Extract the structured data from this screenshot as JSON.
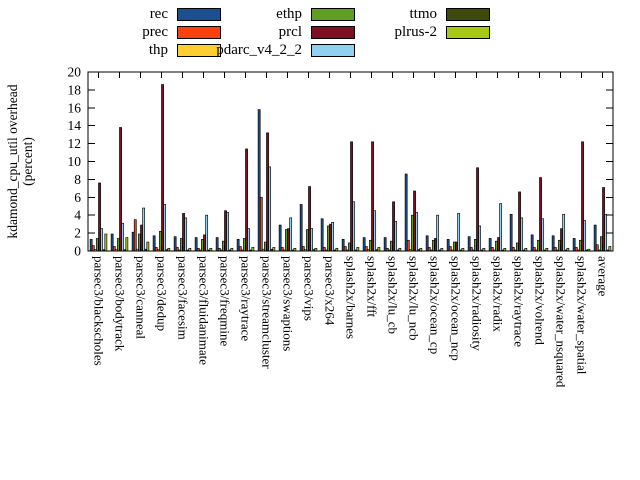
{
  "page": {
    "background": "#ffffff"
  },
  "legend": {
    "columns": [
      [
        "rec",
        "prec",
        "thp"
      ],
      [
        "ethp",
        "prcl",
        "pdarc_v4_2_2"
      ],
      [
        "ttmo",
        "plrus-2"
      ]
    ]
  },
  "chart_data": {
    "type": "bar",
    "title": "",
    "xlabel": "",
    "ylabel_lines": [
      "kdamond_cpu_util overhead",
      "(percent)"
    ],
    "ylim": [
      0,
      20
    ],
    "ytick_step": 2,
    "grid": false,
    "legend_position": "top",
    "categories": [
      "parsec3/blackscholes",
      "parsec3/bodytrack",
      "parsec3/canneal",
      "parsec3/dedup",
      "parsec3/facesim",
      "parsec3/fluidanimate",
      "parsec3/freqmine",
      "parsec3/raytrace",
      "parsec3/streamcluster",
      "parsec3/swaptions",
      "parsec3/vips",
      "parsec3/x264",
      "splash2x/barnes",
      "splash2x/fft",
      "splash2x/lu_cb",
      "splash2x/lu_ncb",
      "splash2x/ocean_cp",
      "splash2x/ocean_ncp",
      "splash2x/radiosity",
      "splash2x/radix",
      "splash2x/raytrace",
      "splash2x/volrend",
      "splash2x/water_nsquared",
      "splash2x/water_spatial",
      "average"
    ],
    "series": [
      {
        "name": "rec",
        "color": "#1b4f8f",
        "values": [
          1.3,
          1.9,
          2.1,
          1.7,
          1.6,
          1.5,
          1.5,
          1.3,
          15.8,
          2.9,
          5.2,
          3.6,
          1.3,
          1.5,
          1.5,
          8.6,
          1.7,
          1.3,
          1.6,
          1.4,
          4.1,
          1.8,
          1.7,
          1.4,
          2.9
        ]
      },
      {
        "name": "prec",
        "color": "#fa410c",
        "values": [
          0.6,
          0.5,
          3.5,
          0.4,
          0.4,
          0.3,
          0.3,
          0.5,
          6.0,
          0.4,
          0.5,
          0.4,
          0.5,
          0.5,
          0.3,
          1.2,
          0.4,
          0.5,
          0.4,
          0.4,
          0.4,
          0.4,
          0.4,
          0.4,
          0.7
        ]
      },
      {
        "name": "thp",
        "color": "#ffce30",
        "values": [
          0.15,
          0.15,
          0.2,
          0.15,
          0.1,
          0.1,
          0.1,
          0.1,
          0.2,
          0.1,
          0.15,
          0.1,
          0.1,
          0.15,
          0.1,
          0.15,
          0.1,
          0.1,
          0.1,
          0.1,
          0.1,
          0.1,
          0.1,
          0.1,
          0.1
        ]
      },
      {
        "name": "ethp",
        "color": "#5f9e22",
        "values": [
          1.4,
          1.4,
          1.9,
          2.2,
          1.4,
          1.3,
          1.1,
          1.4,
          1.0,
          2.4,
          2.4,
          2.8,
          0.9,
          1.2,
          1.1,
          4.0,
          1.2,
          1.0,
          1.3,
          1.1,
          0.9,
          1.2,
          1.2,
          1.2,
          1.6
        ]
      },
      {
        "name": "prcl",
        "color": "#7f0f22",
        "values": [
          7.6,
          13.8,
          2.9,
          18.6,
          4.2,
          1.8,
          4.5,
          11.4,
          13.2,
          2.5,
          7.2,
          3.0,
          12.2,
          12.2,
          5.5,
          6.7,
          1.4,
          1.0,
          9.3,
          1.5,
          6.6,
          8.2,
          2.5,
          12.2,
          7.1
        ]
      },
      {
        "name": "pdarc_v4_2_2",
        "color": "#90d0f0",
        "values": [
          2.5,
          3.1,
          4.8,
          5.2,
          3.7,
          4.0,
          4.3,
          2.5,
          9.4,
          3.7,
          2.5,
          3.2,
          5.5,
          4.5,
          3.3,
          4.3,
          4.0,
          4.2,
          2.8,
          5.3,
          3.7,
          3.6,
          4.1,
          3.4,
          4.1
        ]
      },
      {
        "name": "ttmo",
        "color": "#3e490c",
        "values": [
          0.15,
          0.15,
          0.2,
          0.15,
          0.1,
          0.1,
          0.1,
          0.1,
          0.2,
          0.1,
          0.15,
          0.1,
          0.1,
          0.15,
          0.1,
          0.15,
          0.1,
          0.1,
          0.1,
          0.1,
          0.1,
          0.1,
          0.1,
          0.1,
          0.1
        ]
      },
      {
        "name": "plrus-2",
        "color": "#a7c815",
        "values": [
          1.9,
          1.5,
          1.0,
          0.3,
          0.3,
          0.3,
          0.3,
          0.4,
          0.4,
          0.3,
          0.3,
          0.3,
          0.4,
          0.4,
          0.3,
          0.3,
          0.3,
          0.3,
          0.3,
          0.3,
          0.3,
          0.3,
          0.3,
          0.2,
          0.5
        ]
      }
    ]
  }
}
